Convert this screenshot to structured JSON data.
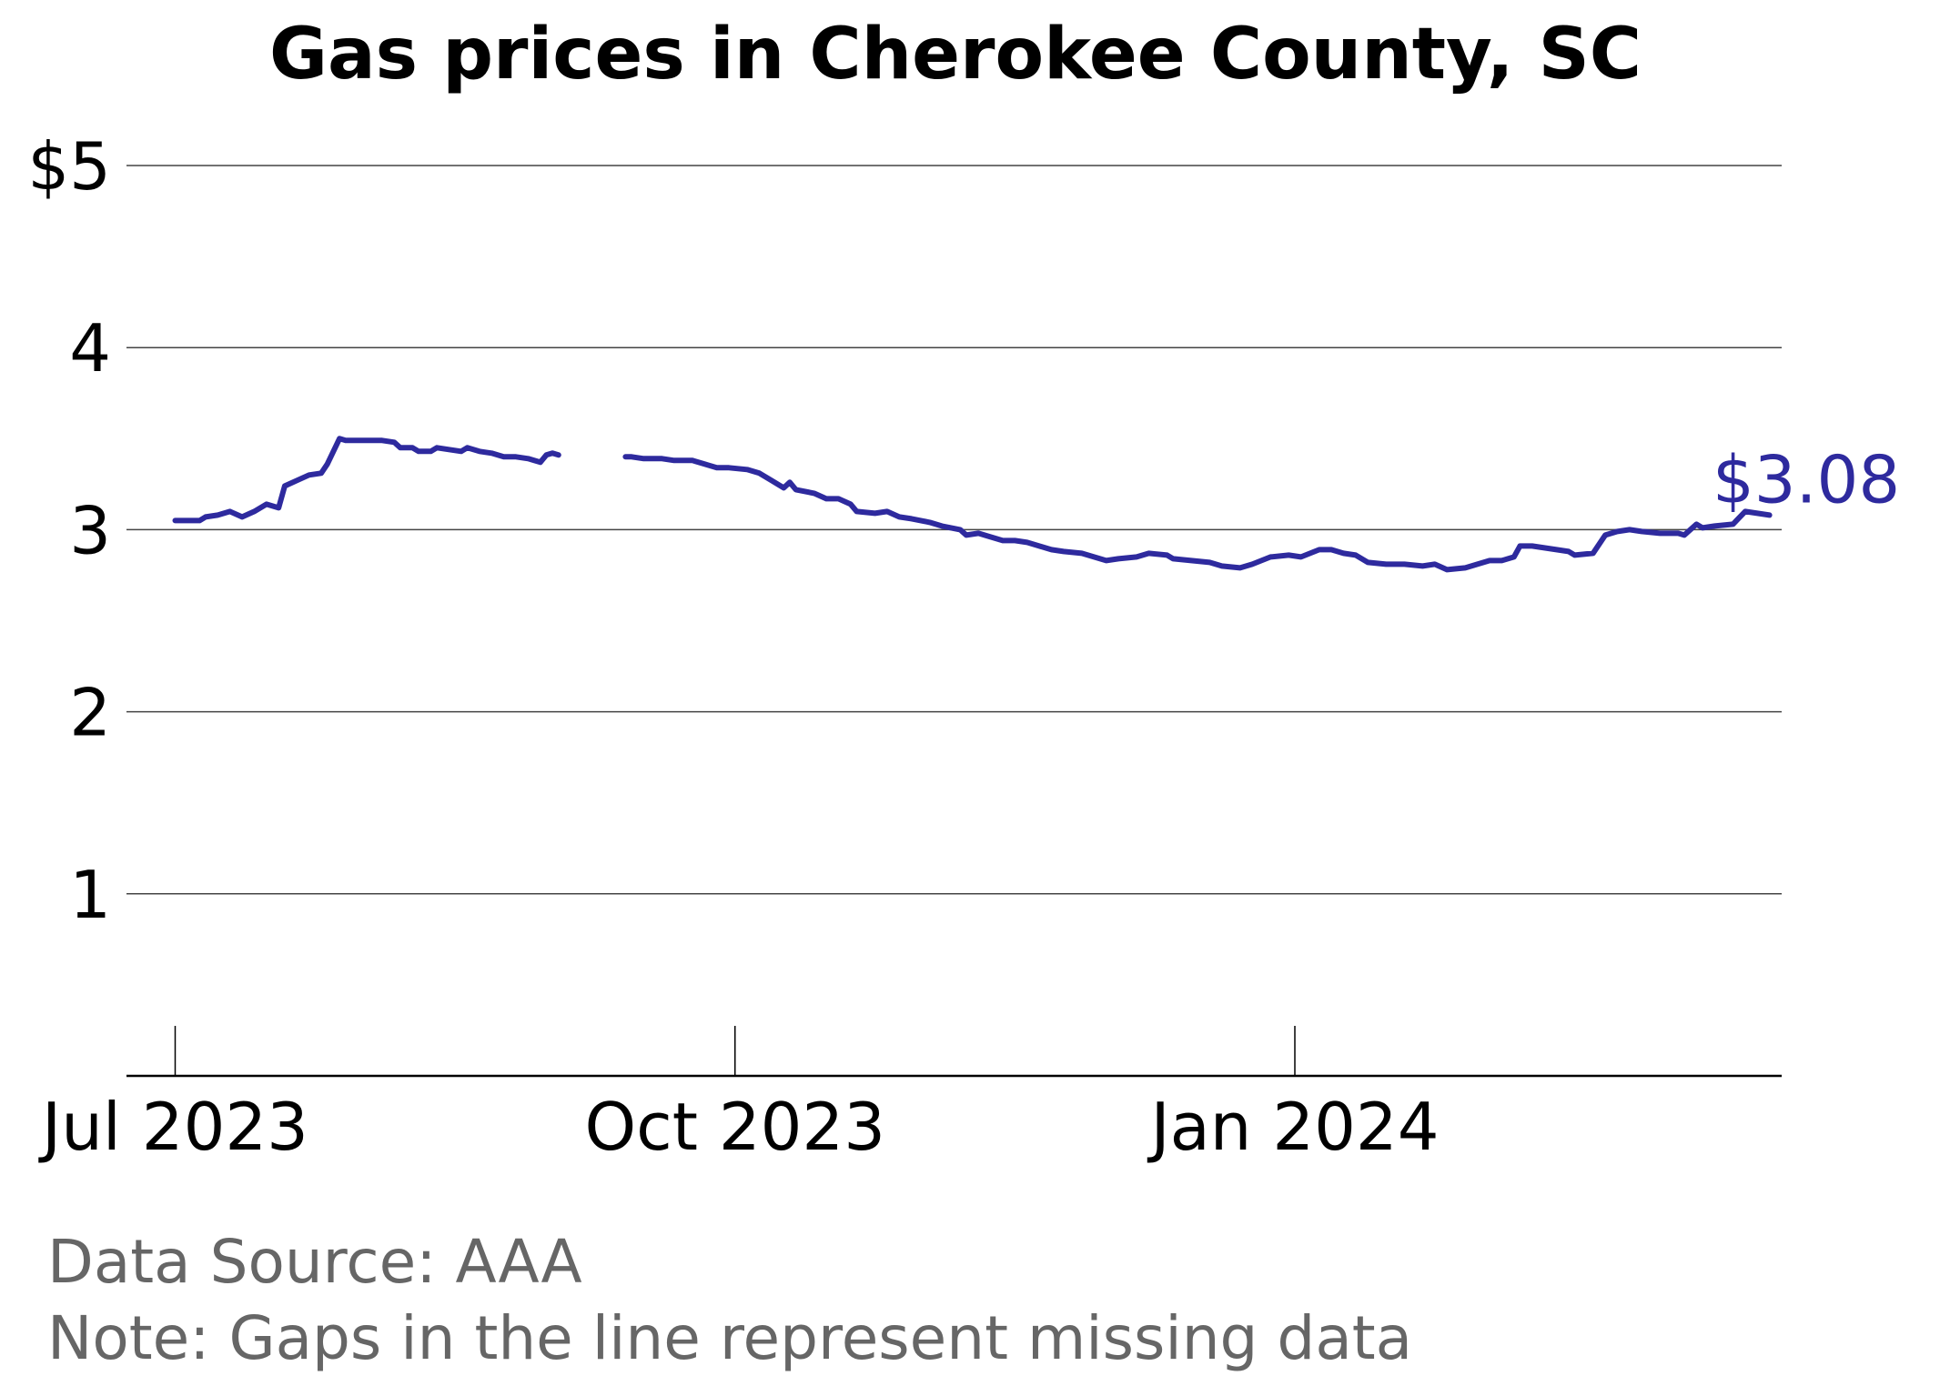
{
  "title": "Gas prices in Cherokee County, SC",
  "footer": {
    "source": "Data Source: AAA",
    "note": "Note: Gaps in the line represent missing data"
  },
  "colors": {
    "line": "#2e2a9e",
    "axis": "#000000",
    "grid": "#444444",
    "footer": "#666666"
  },
  "chart_data": {
    "type": "line",
    "title": "Gas prices in Cherokee County, SC",
    "xlabel": "",
    "ylabel": "",
    "ylim": [
      0,
      5
    ],
    "xlim": [
      "2023-06-23",
      "2024-03-21"
    ],
    "yticks": [
      {
        "value": 1,
        "label": "1"
      },
      {
        "value": 2,
        "label": "2"
      },
      {
        "value": 3,
        "label": "3"
      },
      {
        "value": 4,
        "label": "4"
      },
      {
        "value": 5,
        "label": "$5"
      }
    ],
    "xticks": [
      {
        "value": "2023-07-01",
        "label": "Jul 2023"
      },
      {
        "value": "2023-10-01",
        "label": "Oct 2023"
      },
      {
        "value": "2024-01-01",
        "label": "Jan 2024"
      }
    ],
    "grid": "horizontal",
    "end_label": "$3.08",
    "series": [
      {
        "segments": [
          [
            [
              "2023-07-01",
              3.05
            ],
            [
              "2023-07-05",
              3.05
            ],
            [
              "2023-07-06",
              3.07
            ],
            [
              "2023-07-08",
              3.08
            ],
            [
              "2023-07-10",
              3.1
            ],
            [
              "2023-07-12",
              3.07
            ],
            [
              "2023-07-14",
              3.1
            ],
            [
              "2023-07-16",
              3.14
            ],
            [
              "2023-07-18",
              3.12
            ],
            [
              "2023-07-19",
              3.24
            ],
            [
              "2023-07-21",
              3.27
            ],
            [
              "2023-07-23",
              3.3
            ],
            [
              "2023-07-25",
              3.31
            ],
            [
              "2023-07-26",
              3.36
            ],
            [
              "2023-07-28",
              3.5
            ],
            [
              "2023-07-29",
              3.49
            ],
            [
              "2023-08-02",
              3.49
            ],
            [
              "2023-08-04",
              3.49
            ],
            [
              "2023-08-06",
              3.48
            ],
            [
              "2023-08-07",
              3.45
            ],
            [
              "2023-08-09",
              3.45
            ],
            [
              "2023-08-10",
              3.43
            ],
            [
              "2023-08-12",
              3.43
            ],
            [
              "2023-08-13",
              3.45
            ],
            [
              "2023-08-15",
              3.44
            ],
            [
              "2023-08-17",
              3.43
            ],
            [
              "2023-08-18",
              3.45
            ],
            [
              "2023-08-20",
              3.43
            ],
            [
              "2023-08-22",
              3.42
            ],
            [
              "2023-08-24",
              3.4
            ],
            [
              "2023-08-26",
              3.4
            ],
            [
              "2023-08-28",
              3.39
            ],
            [
              "2023-08-30",
              3.37
            ],
            [
              "2023-08-31",
              3.41
            ],
            [
              "2023-09-01",
              3.42
            ],
            [
              "2023-09-02",
              3.41
            ]
          ],
          [
            [
              "2023-09-13",
              3.4
            ],
            [
              "2023-09-14",
              3.4
            ],
            [
              "2023-09-16",
              3.39
            ],
            [
              "2023-09-19",
              3.39
            ],
            [
              "2023-09-21",
              3.38
            ],
            [
              "2023-09-24",
              3.38
            ],
            [
              "2023-09-26",
              3.36
            ],
            [
              "2023-09-28",
              3.34
            ],
            [
              "2023-09-30",
              3.34
            ],
            [
              "2023-10-03",
              3.33
            ],
            [
              "2023-10-05",
              3.31
            ],
            [
              "2023-10-07",
              3.27
            ],
            [
              "2023-10-09",
              3.23
            ],
            [
              "2023-10-10",
              3.26
            ],
            [
              "2023-10-11",
              3.22
            ],
            [
              "2023-10-14",
              3.2
            ],
            [
              "2023-10-16",
              3.17
            ],
            [
              "2023-10-18",
              3.17
            ],
            [
              "2023-10-20",
              3.14
            ],
            [
              "2023-10-21",
              3.1
            ],
            [
              "2023-10-24",
              3.09
            ],
            [
              "2023-10-26",
              3.1
            ],
            [
              "2023-10-28",
              3.07
            ],
            [
              "2023-10-30",
              3.06
            ],
            [
              "2023-11-02",
              3.04
            ],
            [
              "2023-11-04",
              3.02
            ],
            [
              "2023-11-07",
              3.0
            ],
            [
              "2023-11-08",
              2.97
            ],
            [
              "2023-11-10",
              2.98
            ],
            [
              "2023-11-12",
              2.96
            ],
            [
              "2023-11-14",
              2.94
            ],
            [
              "2023-11-16",
              2.94
            ],
            [
              "2023-11-18",
              2.93
            ],
            [
              "2023-11-20",
              2.91
            ],
            [
              "2023-11-22",
              2.89
            ],
            [
              "2023-11-24",
              2.88
            ],
            [
              "2023-11-27",
              2.87
            ],
            [
              "2023-11-29",
              2.85
            ],
            [
              "2023-12-01",
              2.83
            ],
            [
              "2023-12-03",
              2.84
            ],
            [
              "2023-12-06",
              2.85
            ],
            [
              "2023-12-08",
              2.87
            ],
            [
              "2023-12-11",
              2.86
            ],
            [
              "2023-12-12",
              2.84
            ],
            [
              "2023-12-15",
              2.83
            ],
            [
              "2023-12-18",
              2.82
            ],
            [
              "2023-12-20",
              2.8
            ],
            [
              "2023-12-23",
              2.79
            ],
            [
              "2023-12-25",
              2.81
            ],
            [
              "2023-12-28",
              2.85
            ],
            [
              "2023-12-31",
              2.86
            ],
            [
              "2024-01-02",
              2.85
            ],
            [
              "2024-01-05",
              2.89
            ],
            [
              "2024-01-07",
              2.89
            ],
            [
              "2024-01-09",
              2.87
            ],
            [
              "2024-01-11",
              2.86
            ],
            [
              "2024-01-13",
              2.82
            ],
            [
              "2024-01-16",
              2.81
            ],
            [
              "2024-01-19",
              2.81
            ],
            [
              "2024-01-22",
              2.8
            ],
            [
              "2024-01-24",
              2.81
            ],
            [
              "2024-01-26",
              2.78
            ],
            [
              "2024-01-29",
              2.79
            ],
            [
              "2024-01-31",
              2.81
            ],
            [
              "2024-02-02",
              2.83
            ],
            [
              "2024-02-04",
              2.83
            ],
            [
              "2024-02-06",
              2.85
            ],
            [
              "2024-02-07",
              2.91
            ],
            [
              "2024-02-09",
              2.91
            ],
            [
              "2024-02-11",
              2.9
            ],
            [
              "2024-02-13",
              2.89
            ],
            [
              "2024-02-15",
              2.88
            ],
            [
              "2024-02-16",
              2.86
            ],
            [
              "2024-02-19",
              2.87
            ],
            [
              "2024-02-21",
              2.97
            ],
            [
              "2024-02-23",
              2.99
            ],
            [
              "2024-02-25",
              3.0
            ],
            [
              "2024-02-27",
              2.99
            ],
            [
              "2024-03-01",
              2.98
            ],
            [
              "2024-03-04",
              2.98
            ],
            [
              "2024-03-05",
              2.97
            ],
            [
              "2024-03-07",
              3.03
            ],
            [
              "2024-03-08",
              3.01
            ],
            [
              "2024-03-10",
              3.02
            ],
            [
              "2024-03-13",
              3.03
            ],
            [
              "2024-03-15",
              3.1
            ],
            [
              "2024-03-17",
              3.09
            ],
            [
              "2024-03-19",
              3.08
            ]
          ]
        ]
      }
    ]
  }
}
